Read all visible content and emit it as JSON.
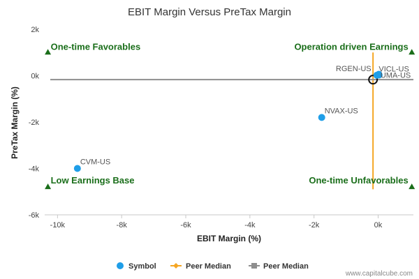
{
  "chart_data": {
    "type": "scatter",
    "title": "EBIT Margin Versus PreTax Margin",
    "xlabel": "EBIT Margin (%)",
    "ylabel": "PreTax Margin (%)",
    "xlim": [
      -10400,
      1100
    ],
    "ylim": [
      -6000,
      2000
    ],
    "x_ticks": [
      -10000,
      -8000,
      -6000,
      -4000,
      -2000,
      0
    ],
    "x_tick_labels": [
      "-10k",
      "-8k",
      "-6k",
      "-4k",
      "-2k",
      "0k"
    ],
    "y_ticks": [
      2000,
      0,
      -2000,
      -4000,
      -6000
    ],
    "y_tick_labels": [
      "2k",
      "0k",
      "-2k",
      "-4k",
      "-6k"
    ],
    "grid": false,
    "legend_position": "bottom",
    "series": [
      {
        "name": "Symbol",
        "color": "#1f9ee8",
        "points": [
          {
            "label": "RGEN-US",
            "x": -40,
            "y": 20
          },
          {
            "label": "VICL-US",
            "x": 20,
            "y": 60
          },
          {
            "label": "UMA-US",
            "x": 30,
            "y": 30
          },
          {
            "label": "NVAX-US",
            "x": -1760,
            "y": -1800
          },
          {
            "label": "CVM-US",
            "x": -9380,
            "y": -4000
          }
        ]
      },
      {
        "name": "Peer Median",
        "color": "#f5a623",
        "x": -160
      },
      {
        "name": "Peer Median",
        "color": "#8e8e8e",
        "y": -170
      }
    ],
    "highlight": {
      "x": -160,
      "y": -170
    },
    "quadrant_labels": {
      "top_left": "One-time Favorables",
      "top_right": "Operation driven Earnings",
      "bottom_left": "Low Earnings Base",
      "bottom_right": "One-time Unfavorables"
    },
    "quadrant_color": "#1a6e1a",
    "credit": "www.capitalcube.com"
  }
}
